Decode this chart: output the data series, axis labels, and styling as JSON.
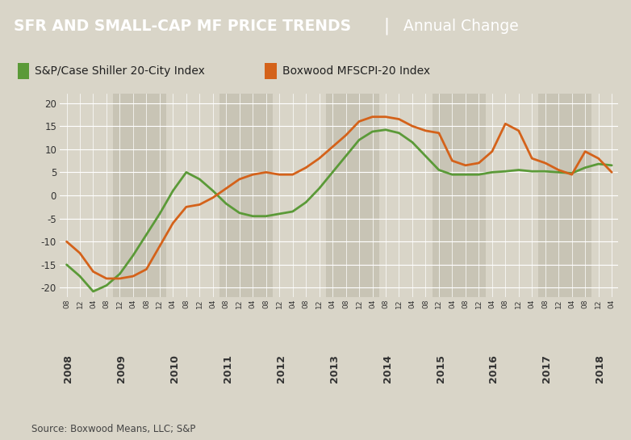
{
  "title_bold": "SFR AND SMALL-CAP MF PRICE TRENDS",
  "title_separator": "|",
  "title_light": "Annual Change",
  "source": "Source: Boxwood Means, LLC; S&P",
  "legend_green": "S&P/Case Shiller 20-City Index",
  "legend_orange": "Boxwood MFSCPI-20 Index",
  "color_green": "#5b9a38",
  "color_orange": "#d4621a",
  "title_bg": "#6b6b6b",
  "bg_color": "#d9d5c8",
  "plot_bg_light": "#d9d5c8",
  "plot_bg_dark": "#c8c4b5",
  "grid_color": "#ffffff",
  "ylim": [
    -22,
    22
  ],
  "yticks": [
    -20,
    -15,
    -10,
    -5,
    0,
    5,
    10,
    15,
    20
  ],
  "spcs_y": [
    -15.0,
    -17.5,
    -20.8,
    -19.5,
    -17.0,
    -13.0,
    -8.5,
    -4.0,
    1.0,
    5.0,
    3.5,
    1.0,
    -1.8,
    -3.8,
    -4.5,
    -4.5,
    -4.0,
    -3.5,
    -1.5,
    1.5,
    5.0,
    8.5,
    12.0,
    13.8,
    14.2,
    13.5,
    11.5,
    8.5,
    5.5,
    4.5,
    4.5,
    4.5,
    5.0,
    5.2,
    5.5,
    5.2,
    5.2,
    5.0,
    4.8,
    6.0,
    6.8,
    6.5
  ],
  "boxwood_y": [
    -10.0,
    -12.5,
    -16.5,
    -18.0,
    -18.0,
    -17.5,
    -16.0,
    -11.0,
    -6.0,
    -2.5,
    -2.0,
    -0.5,
    1.5,
    3.5,
    4.5,
    5.0,
    4.5,
    4.5,
    6.0,
    8.0,
    10.5,
    13.0,
    16.0,
    17.0,
    17.0,
    16.5,
    15.0,
    14.0,
    13.5,
    7.5,
    6.5,
    7.0,
    9.5,
    15.5,
    14.0,
    8.0,
    7.0,
    5.5,
    4.5,
    9.5,
    8.0,
    5.0
  ],
  "minor_tick_labels": [
    "08",
    "12",
    "04",
    "08",
    "12",
    "04",
    "08",
    "12",
    "04",
    "08",
    "12",
    "04",
    "08",
    "12",
    "04",
    "08",
    "12",
    "04",
    "08",
    "12",
    "04",
    "08",
    "12",
    "04",
    "08",
    "12",
    "04",
    "08",
    "12",
    "04",
    "08",
    "12",
    "04",
    "08",
    "12",
    "04",
    "08",
    "12",
    "04",
    "08",
    "12",
    "04"
  ],
  "major_year_labels": [
    "2008",
    "2009",
    "2010",
    "2011",
    "2012",
    "2013",
    "2014",
    "2015",
    "2016",
    "2017",
    "2018"
  ],
  "major_year_offsets": [
    0,
    4,
    8,
    12,
    16,
    20,
    24,
    28,
    32,
    36,
    40
  ]
}
